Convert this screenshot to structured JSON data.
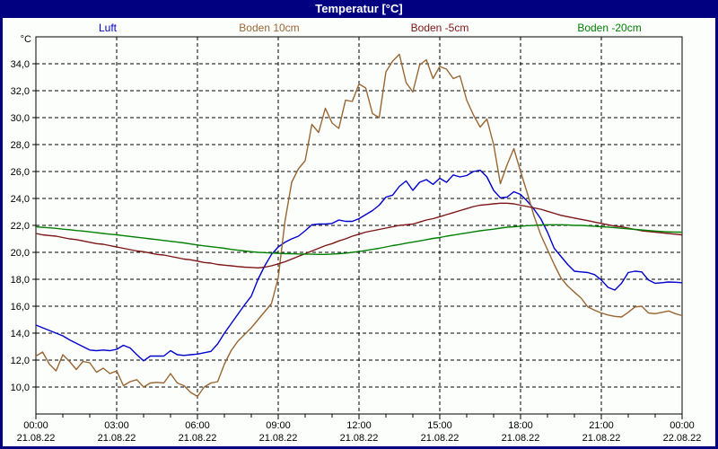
{
  "window": {
    "title": "Temperatur [°C]"
  },
  "chart_data": {
    "type": "line",
    "title": "Temperatur [°C]",
    "ylabel": "°C",
    "xlabel": "",
    "legend_position": "top",
    "grid": "dashed black, horizontal every 2 °C, vertical every 3 h, minor x-ticks hourly",
    "ylim": [
      8,
      36
    ],
    "xlim_hours": [
      0,
      24
    ],
    "sample_interval_minutes": 15,
    "y_ticks": [
      {
        "value": 34,
        "label": "34,0"
      },
      {
        "value": 32,
        "label": "32,0"
      },
      {
        "value": 30,
        "label": "30,0"
      },
      {
        "value": 28,
        "label": "28,0"
      },
      {
        "value": 26,
        "label": "26,0"
      },
      {
        "value": 24,
        "label": "24,0"
      },
      {
        "value": 22,
        "label": "22,0"
      },
      {
        "value": 20,
        "label": "20,0"
      },
      {
        "value": 18,
        "label": "18,0"
      },
      {
        "value": 16,
        "label": "16,0"
      },
      {
        "value": 14,
        "label": "14,0"
      },
      {
        "value": 12,
        "label": "12,0"
      },
      {
        "value": 10,
        "label": "10,0"
      }
    ],
    "x_ticks": [
      {
        "hour": 0,
        "time": "00:00",
        "date": "21.08.22"
      },
      {
        "hour": 3,
        "time": "03:00",
        "date": "21.08.22"
      },
      {
        "hour": 6,
        "time": "06:00",
        "date": "21.08.22"
      },
      {
        "hour": 9,
        "time": "09:00",
        "date": "21.08.22"
      },
      {
        "hour": 12,
        "time": "12:00",
        "date": "21.08.22"
      },
      {
        "hour": 15,
        "time": "15:00",
        "date": "21.08.22"
      },
      {
        "hour": 18,
        "time": "18:00",
        "date": "21.08.22"
      },
      {
        "hour": 21,
        "time": "21:00",
        "date": "21.08.22"
      },
      {
        "hour": 24,
        "time": "00:00",
        "date": "22.08.22"
      }
    ],
    "series": [
      {
        "name": "Luft",
        "color": "#0000cc",
        "values": [
          14.6,
          14.4,
          14.2,
          14.0,
          13.8,
          13.5,
          13.25,
          13.0,
          12.75,
          12.7,
          12.75,
          12.7,
          12.8,
          13.1,
          12.9,
          12.4,
          11.95,
          12.3,
          12.3,
          12.3,
          12.7,
          12.4,
          12.35,
          12.4,
          12.45,
          12.55,
          12.65,
          13.2,
          14.0,
          14.7,
          15.4,
          16.1,
          16.75,
          18.0,
          19.0,
          19.85,
          20.4,
          20.75,
          21.0,
          21.2,
          21.6,
          22.05,
          22.1,
          22.1,
          22.15,
          22.4,
          22.3,
          22.3,
          22.5,
          22.8,
          23.1,
          23.5,
          24.1,
          24.25,
          24.9,
          25.3,
          24.6,
          25.2,
          25.4,
          25.05,
          25.5,
          25.2,
          25.75,
          25.6,
          25.7,
          26.0,
          26.1,
          25.6,
          24.6,
          24.05,
          24.1,
          24.5,
          24.3,
          23.8,
          23.2,
          22.5,
          21.5,
          20.3,
          19.7,
          19.1,
          18.6,
          18.55,
          18.5,
          18.35,
          17.95,
          17.4,
          17.2,
          17.7,
          18.5,
          18.6,
          18.55,
          17.95,
          17.7,
          17.75,
          17.8,
          17.78,
          17.75
        ]
      },
      {
        "name": "Boden 10cm",
        "color": "#996633",
        "values": [
          12.3,
          12.6,
          11.7,
          11.2,
          12.4,
          11.9,
          11.3,
          11.9,
          11.8,
          11.1,
          11.4,
          11.0,
          11.2,
          10.1,
          10.4,
          10.55,
          10.0,
          10.3,
          10.35,
          10.3,
          11.0,
          10.3,
          10.1,
          9.6,
          9.3,
          10.0,
          10.3,
          10.4,
          11.7,
          12.7,
          13.4,
          13.9,
          14.4,
          15.0,
          15.6,
          16.2,
          18.1,
          22.3,
          25.2,
          26.2,
          26.8,
          29.5,
          28.9,
          30.7,
          29.6,
          29.2,
          31.3,
          31.2,
          32.5,
          32.2,
          30.3,
          30.0,
          33.4,
          34.2,
          34.7,
          32.6,
          31.9,
          33.9,
          34.3,
          32.9,
          33.8,
          33.6,
          32.9,
          33.1,
          31.3,
          30.2,
          29.3,
          29.9,
          28.0,
          25.1,
          26.5,
          27.7,
          26.0,
          24.4,
          22.7,
          21.3,
          20.2,
          19.1,
          18.1,
          17.5,
          17.05,
          16.6,
          15.95,
          15.7,
          15.5,
          15.35,
          15.25,
          15.2,
          15.55,
          15.95,
          16.0,
          15.5,
          15.45,
          15.55,
          15.65,
          15.45,
          15.3
        ]
      },
      {
        "name": "Boden -5cm",
        "color": "#7d1616",
        "values": [
          21.4,
          21.3,
          21.25,
          21.2,
          21.1,
          21.0,
          20.95,
          20.85,
          20.75,
          20.65,
          20.6,
          20.5,
          20.4,
          20.3,
          20.2,
          20.1,
          20.05,
          19.95,
          19.85,
          19.8,
          19.7,
          19.6,
          19.5,
          19.45,
          19.35,
          19.25,
          19.2,
          19.1,
          19.05,
          19.0,
          18.95,
          18.9,
          18.88,
          18.85,
          18.9,
          19.0,
          19.15,
          19.3,
          19.5,
          19.7,
          19.9,
          20.1,
          20.3,
          20.5,
          20.65,
          20.85,
          21.0,
          21.2,
          21.35,
          21.5,
          21.6,
          21.7,
          21.8,
          21.9,
          22.0,
          22.05,
          22.1,
          22.25,
          22.4,
          22.5,
          22.65,
          22.8,
          22.95,
          23.1,
          23.25,
          23.4,
          23.5,
          23.55,
          23.6,
          23.65,
          23.65,
          23.6,
          23.5,
          23.4,
          23.3,
          23.2,
          23.05,
          22.9,
          22.75,
          22.65,
          22.55,
          22.45,
          22.35,
          22.25,
          22.15,
          22.05,
          21.95,
          21.9,
          21.8,
          21.7,
          21.6,
          21.55,
          21.5,
          21.45,
          21.4,
          21.35,
          21.3
        ]
      },
      {
        "name": "Boden -20cm",
        "color": "#008000",
        "values": [
          21.9,
          21.85,
          21.82,
          21.78,
          21.72,
          21.68,
          21.62,
          21.58,
          21.52,
          21.46,
          21.4,
          21.35,
          21.3,
          21.24,
          21.18,
          21.12,
          21.06,
          21.0,
          20.95,
          20.88,
          20.82,
          20.76,
          20.7,
          20.62,
          20.55,
          20.48,
          20.42,
          20.36,
          20.3,
          20.22,
          20.16,
          20.1,
          20.05,
          20.0,
          19.98,
          19.95,
          19.93,
          19.9,
          19.9,
          19.88,
          19.87,
          19.86,
          19.85,
          19.85,
          19.87,
          19.9,
          19.94,
          20.0,
          20.06,
          20.14,
          20.22,
          20.3,
          20.4,
          20.5,
          20.58,
          20.68,
          20.76,
          20.85,
          20.94,
          21.03,
          21.1,
          21.2,
          21.28,
          21.36,
          21.44,
          21.52,
          21.6,
          21.66,
          21.72,
          21.8,
          21.86,
          21.9,
          21.94,
          21.98,
          22.0,
          22.03,
          22.05,
          22.05,
          22.05,
          22.03,
          22.0,
          22.0,
          21.97,
          21.94,
          21.9,
          21.87,
          21.83,
          21.79,
          21.75,
          21.7,
          21.66,
          21.62,
          21.58,
          21.55,
          21.52,
          21.5,
          21.5
        ]
      }
    ]
  },
  "colors": {
    "titlebar_bg": "#000080",
    "titlebar_text": "#ffffff",
    "window_border": "#000080",
    "background": "#fcfefc",
    "grid": "#000000"
  }
}
